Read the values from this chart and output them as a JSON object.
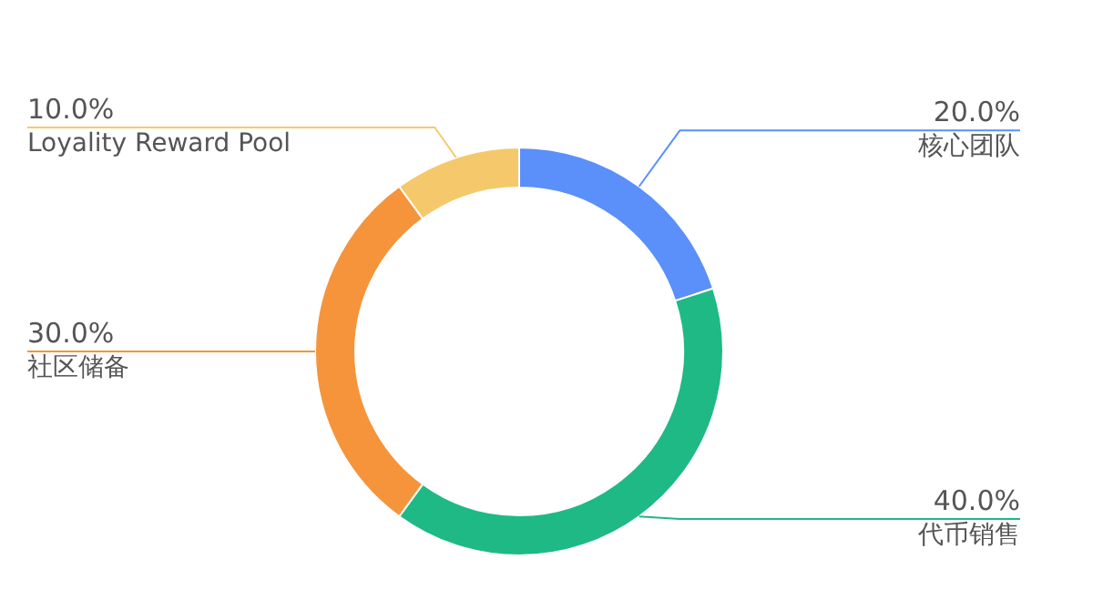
{
  "chart_data": {
    "type": "donut",
    "categories": [
      "核心团队",
      "代币销售",
      "社区储备",
      "Loyality Reward Pool"
    ],
    "values": [
      20,
      40,
      30,
      10
    ],
    "value_labels": [
      "20.0%",
      "40.0%",
      "30.0%",
      "10.0%"
    ],
    "colors": [
      "#5b8ff9",
      "#1fb985",
      "#f5943a",
      "#f5c96b"
    ]
  }
}
